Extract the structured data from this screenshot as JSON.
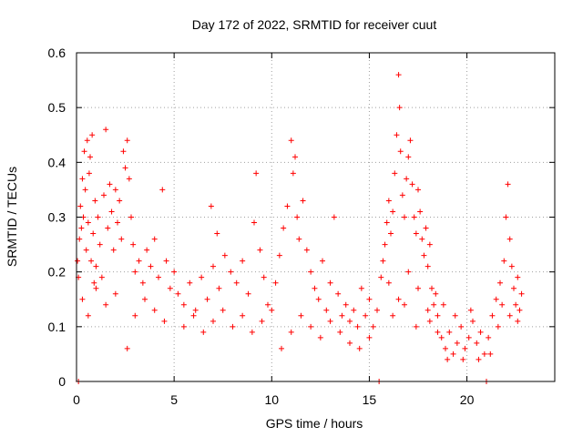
{
  "chart_data": {
    "type": "scatter",
    "title": "Day 172 of 2022, SRMTID for receiver cuut",
    "xlabel": "GPS time / hours",
    "ylabel": "SRMTID / TECUs",
    "xlim": [
      0,
      24.5
    ],
    "ylim": [
      0,
      0.6
    ],
    "x_ticks": [
      0,
      5,
      10,
      15,
      20
    ],
    "x_tick_labels": [
      "0",
      "5",
      "10",
      "15",
      "20"
    ],
    "y_ticks": [
      0,
      0.1,
      0.2,
      0.3,
      0.4,
      0.5,
      0.6
    ],
    "y_tick_labels": [
      "0",
      "0.1",
      "0.2",
      "0.3",
      "0.4",
      "0.5",
      "0.6"
    ],
    "grid": true,
    "marker": "plus",
    "color": "#ff0000",
    "series": [
      {
        "name": "SRMTID",
        "points": [
          [
            0.05,
            0.22
          ],
          [
            0.1,
            0.19
          ],
          [
            0.15,
            0.26
          ],
          [
            0.2,
            0.32
          ],
          [
            0.25,
            0.28
          ],
          [
            0.3,
            0.37
          ],
          [
            0.35,
            0.3
          ],
          [
            0.4,
            0.42
          ],
          [
            0.45,
            0.35
          ],
          [
            0.5,
            0.24
          ],
          [
            0.55,
            0.44
          ],
          [
            0.6,
            0.29
          ],
          [
            0.65,
            0.38
          ],
          [
            0.7,
            0.41
          ],
          [
            0.75,
            0.22
          ],
          [
            0.8,
            0.45
          ],
          [
            0.85,
            0.27
          ],
          [
            0.9,
            0.18
          ],
          [
            0.95,
            0.33
          ],
          [
            1.0,
            0.21
          ],
          [
            1.1,
            0.3
          ],
          [
            1.2,
            0.25
          ],
          [
            1.3,
            0.19
          ],
          [
            1.4,
            0.34
          ],
          [
            1.5,
            0.46
          ],
          [
            1.6,
            0.28
          ],
          [
            1.7,
            0.36
          ],
          [
            1.8,
            0.31
          ],
          [
            1.9,
            0.24
          ],
          [
            2.0,
            0.35
          ],
          [
            2.1,
            0.29
          ],
          [
            2.2,
            0.33
          ],
          [
            2.3,
            0.26
          ],
          [
            2.4,
            0.42
          ],
          [
            2.5,
            0.39
          ],
          [
            2.6,
            0.44
          ],
          [
            2.7,
            0.37
          ],
          [
            2.8,
            0.3
          ],
          [
            2.9,
            0.25
          ],
          [
            3.0,
            0.2
          ],
          [
            3.2,
            0.22
          ],
          [
            3.4,
            0.18
          ],
          [
            3.6,
            0.24
          ],
          [
            3.8,
            0.21
          ],
          [
            4.0,
            0.26
          ],
          [
            4.2,
            0.19
          ],
          [
            4.4,
            0.35
          ],
          [
            4.6,
            0.22
          ],
          [
            4.8,
            0.17
          ],
          [
            5.0,
            0.2
          ],
          [
            0.3,
            0.15
          ],
          [
            0.6,
            0.12
          ],
          [
            1.0,
            0.17
          ],
          [
            1.5,
            0.14
          ],
          [
            2.0,
            0.16
          ],
          [
            2.6,
            0.06
          ],
          [
            3.0,
            0.12
          ],
          [
            3.5,
            0.15
          ],
          [
            4.0,
            0.13
          ],
          [
            4.5,
            0.11
          ],
          [
            5.2,
            0.16
          ],
          [
            5.5,
            0.14
          ],
          [
            5.8,
            0.18
          ],
          [
            6.1,
            0.13
          ],
          [
            6.4,
            0.19
          ],
          [
            6.7,
            0.15
          ],
          [
            7.0,
            0.21
          ],
          [
            7.3,
            0.17
          ],
          [
            7.6,
            0.23
          ],
          [
            7.9,
            0.2
          ],
          [
            6.9,
            0.32
          ],
          [
            7.2,
            0.27
          ],
          [
            8.2,
            0.18
          ],
          [
            8.5,
            0.22
          ],
          [
            8.8,
            0.16
          ],
          [
            9.1,
            0.29
          ],
          [
            9.2,
            0.38
          ],
          [
            9.4,
            0.24
          ],
          [
            9.6,
            0.19
          ],
          [
            9.8,
            0.14
          ],
          [
            5.5,
            0.1
          ],
          [
            6.0,
            0.12
          ],
          [
            6.5,
            0.09
          ],
          [
            7.0,
            0.11
          ],
          [
            7.5,
            0.13
          ],
          [
            8.0,
            0.1
          ],
          [
            8.5,
            0.12
          ],
          [
            9.0,
            0.09
          ],
          [
            9.5,
            0.11
          ],
          [
            10.0,
            0.13
          ],
          [
            10.2,
            0.18
          ],
          [
            10.4,
            0.23
          ],
          [
            10.6,
            0.28
          ],
          [
            10.8,
            0.32
          ],
          [
            11.0,
            0.44
          ],
          [
            11.1,
            0.38
          ],
          [
            11.2,
            0.41
          ],
          [
            11.3,
            0.3
          ],
          [
            11.4,
            0.26
          ],
          [
            11.6,
            0.33
          ],
          [
            11.8,
            0.24
          ],
          [
            12.0,
            0.2
          ],
          [
            12.2,
            0.17
          ],
          [
            12.4,
            0.15
          ],
          [
            12.6,
            0.22
          ],
          [
            12.8,
            0.13
          ],
          [
            13.0,
            0.18
          ],
          [
            13.2,
            0.3
          ],
          [
            13.4,
            0.16
          ],
          [
            13.6,
            0.12
          ],
          [
            10.5,
            0.06
          ],
          [
            11.0,
            0.09
          ],
          [
            11.5,
            0.12
          ],
          [
            12.0,
            0.1
          ],
          [
            12.5,
            0.08
          ],
          [
            13.0,
            0.11
          ],
          [
            13.5,
            0.09
          ],
          [
            14.0,
            0.07
          ],
          [
            14.5,
            0.06
          ],
          [
            15.0,
            0.08
          ],
          [
            13.8,
            0.14
          ],
          [
            14.0,
            0.11
          ],
          [
            14.2,
            0.13
          ],
          [
            14.4,
            0.1
          ],
          [
            14.6,
            0.17
          ],
          [
            14.8,
            0.12
          ],
          [
            15.0,
            0.15
          ],
          [
            15.2,
            0.1
          ],
          [
            15.4,
            0.13
          ],
          [
            15.6,
            0.19
          ],
          [
            15.7,
            0.22
          ],
          [
            15.8,
            0.25
          ],
          [
            15.9,
            0.29
          ],
          [
            16.0,
            0.33
          ],
          [
            16.1,
            0.27
          ],
          [
            16.2,
            0.31
          ],
          [
            16.3,
            0.38
          ],
          [
            16.4,
            0.45
          ],
          [
            16.5,
            0.56
          ],
          [
            16.55,
            0.5
          ],
          [
            16.6,
            0.42
          ],
          [
            16.7,
            0.34
          ],
          [
            16.8,
            0.3
          ],
          [
            16.9,
            0.37
          ],
          [
            17.0,
            0.41
          ],
          [
            17.1,
            0.44
          ],
          [
            17.2,
            0.36
          ],
          [
            17.3,
            0.3
          ],
          [
            17.4,
            0.27
          ],
          [
            17.5,
            0.35
          ],
          [
            17.6,
            0.31
          ],
          [
            17.7,
            0.26
          ],
          [
            17.8,
            0.23
          ],
          [
            17.9,
            0.28
          ],
          [
            18.0,
            0.21
          ],
          [
            18.1,
            0.25
          ],
          [
            18.2,
            0.17
          ],
          [
            18.3,
            0.14
          ],
          [
            18.4,
            0.16
          ],
          [
            18.5,
            0.12
          ],
          [
            16.0,
            0.18
          ],
          [
            16.5,
            0.15
          ],
          [
            17.0,
            0.2
          ],
          [
            17.5,
            0.17
          ],
          [
            18.0,
            0.13
          ],
          [
            18.5,
            0.09
          ],
          [
            16.2,
            0.12
          ],
          [
            16.8,
            0.14
          ],
          [
            17.4,
            0.1
          ],
          [
            18.1,
            0.11
          ],
          [
            18.7,
            0.08
          ],
          [
            18.9,
            0.06
          ],
          [
            19.1,
            0.09
          ],
          [
            19.3,
            0.05
          ],
          [
            19.5,
            0.07
          ],
          [
            19.7,
            0.1
          ],
          [
            19.9,
            0.06
          ],
          [
            20.1,
            0.08
          ],
          [
            20.3,
            0.11
          ],
          [
            20.5,
            0.07
          ],
          [
            20.7,
            0.09
          ],
          [
            20.9,
            0.05
          ],
          [
            21.1,
            0.08
          ],
          [
            21.3,
            0.12
          ],
          [
            21.5,
            0.15
          ],
          [
            21.7,
            0.18
          ],
          [
            21.9,
            0.22
          ],
          [
            22.0,
            0.3
          ],
          [
            22.1,
            0.36
          ],
          [
            22.2,
            0.26
          ],
          [
            22.3,
            0.21
          ],
          [
            22.4,
            0.17
          ],
          [
            22.5,
            0.14
          ],
          [
            22.6,
            0.19
          ],
          [
            22.7,
            0.13
          ],
          [
            22.8,
            0.16
          ],
          [
            19.0,
            0.04
          ],
          [
            19.8,
            0.04
          ],
          [
            20.6,
            0.04
          ],
          [
            21.2,
            0.05
          ],
          [
            0.1,
            0.0
          ],
          [
            15.5,
            0.0
          ],
          [
            21.0,
            0.0
          ],
          [
            21.6,
            0.1
          ],
          [
            22.2,
            0.12
          ],
          [
            22.6,
            0.11
          ],
          [
            20.2,
            0.13
          ],
          [
            19.4,
            0.12
          ],
          [
            18.8,
            0.14
          ],
          [
            21.8,
            0.14
          ]
        ]
      }
    ]
  }
}
